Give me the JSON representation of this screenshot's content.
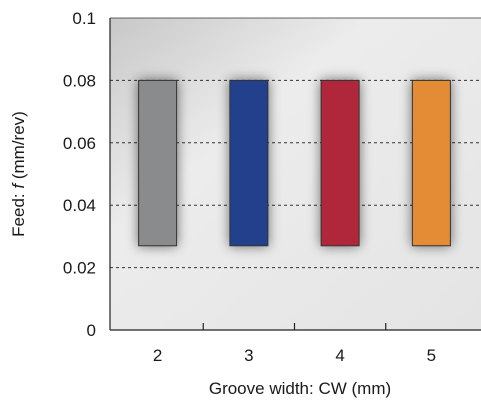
{
  "chart_data": {
    "type": "bar",
    "subtype": "floating-range",
    "title": "",
    "xlabel": "Groove width: CW (mm)",
    "ylabel_prefix": "Feed: ",
    "ylabel_var": "f",
    "ylabel_suffix": " (mm/rev)",
    "categories": [
      "2",
      "3",
      "4",
      "5"
    ],
    "ylim": [
      0,
      0.1
    ],
    "yticks": [
      "0",
      "0.02",
      "0.04",
      "0.06",
      "0.08",
      "0.1"
    ],
    "ytick_values": [
      0,
      0.02,
      0.04,
      0.06,
      0.08,
      0.1
    ],
    "grid": "horizontal dashed",
    "bars": [
      {
        "category": "2",
        "low": 0.027,
        "high": 0.08,
        "color": "#8a8b8d"
      },
      {
        "category": "3",
        "low": 0.027,
        "high": 0.08,
        "color": "#233f8c"
      },
      {
        "category": "4",
        "low": 0.027,
        "high": 0.08,
        "color": "#b0283a"
      },
      {
        "category": "5",
        "low": 0.027,
        "high": 0.08,
        "color": "#e48b34"
      }
    ]
  }
}
